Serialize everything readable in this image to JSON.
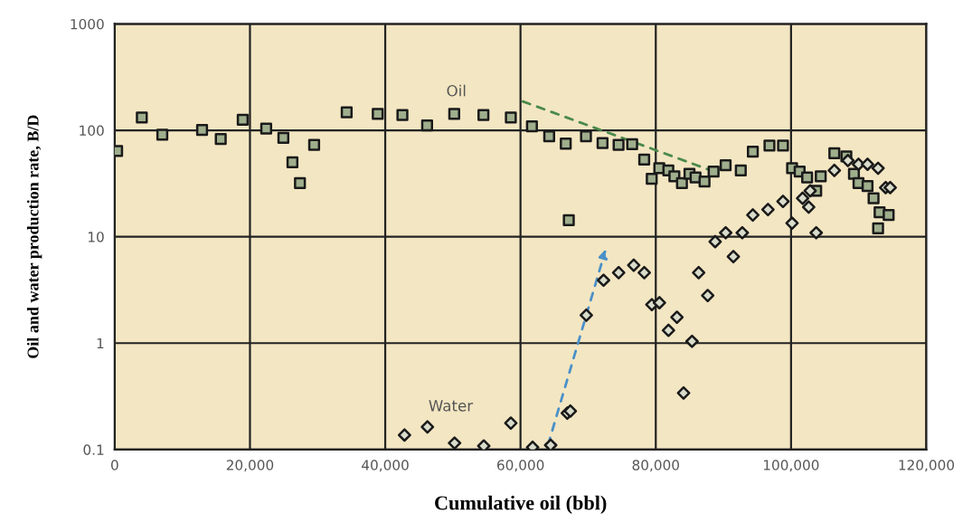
{
  "chart_data": {
    "type": "scatter",
    "xlabel": "Cumulative oil (bbl)",
    "ylabel": "Oil and water production rate, B/D",
    "log": "y",
    "grid": true,
    "xlim": [
      0,
      120000
    ],
    "ylim": [
      0.1,
      1000
    ],
    "xticks": [
      0,
      {
        "value": 20000,
        "label": "20,000"
      },
      {
        "value": 40000,
        "label": "40,000"
      },
      {
        "value": 60000,
        "label": "60,000"
      },
      {
        "value": 80000,
        "label": "80,000"
      },
      {
        "value": 100000,
        "label": "100,000"
      },
      {
        "value": 120000,
        "label": "120,000"
      }
    ],
    "yticks": [
      {
        "value": 0.1,
        "label": "0.1"
      },
      1,
      10,
      100,
      1000
    ],
    "series": [
      {
        "color": "#9fae8c",
        "marker": "square",
        "x": [
          360,
          4010,
          7040,
          12920,
          15680,
          18930,
          22400,
          24940,
          26280,
          27390,
          29490,
          34300,
          38890,
          42540,
          46190,
          50200,
          54520,
          58570,
          61690,
          64240,
          66690,
          67140,
          69680,
          72130,
          74500,
          76510,
          78290,
          79400,
          80520,
          81860,
          82750,
          83870,
          84980,
          85880,
          87210,
          88550,
          90330,
          92570,
          94350,
          96810,
          98810,
          100150,
          101270,
          102380,
          103720,
          104390,
          106400,
          108180,
          109300,
          109970,
          111310,
          112200,
          112870,
          113090,
          114430
        ],
        "values": [
          64,
          132,
          91,
          101,
          83,
          126,
          104,
          85,
          50,
          32,
          73,
          148,
          143,
          139,
          111,
          143,
          139,
          132,
          109,
          88,
          75,
          14.3,
          88,
          76,
          73,
          74,
          53,
          35,
          44,
          42,
          37,
          32,
          39,
          36,
          33,
          41,
          47,
          42,
          63,
          72,
          72,
          44,
          41,
          36,
          27,
          37,
          61,
          57,
          39,
          32,
          30,
          23,
          12,
          17,
          16
        ]
      },
      {
        "color": "#d9dccb",
        "marker": "diamond",
        "x": [
          42850,
          46240,
          50250,
          54570,
          58570,
          61790,
          64460,
          66920,
          67370,
          69730,
          72280,
          74510,
          76740,
          78300,
          79420,
          80540,
          81880,
          83130,
          84110,
          85360,
          86340,
          87680,
          88780,
          90340,
          91470,
          92790,
          94350,
          96590,
          98810,
          100150,
          101710,
          102610,
          102830,
          103720,
          106400,
          108410,
          109970,
          111310,
          112870,
          113990,
          114660
        ],
        "values": [
          0.137,
          0.163,
          0.115,
          0.108,
          0.177,
          0.105,
          0.11,
          0.22,
          0.23,
          1.83,
          3.9,
          4.6,
          5.4,
          4.6,
          2.3,
          2.4,
          1.32,
          1.75,
          0.34,
          1.04,
          4.6,
          2.8,
          9,
          10.9,
          6.5,
          10.9,
          16,
          18,
          21.5,
          13.4,
          23,
          19,
          27,
          10.9,
          42,
          52,
          48,
          48,
          44,
          29,
          29
        ]
      }
    ],
    "annotations": [
      "Oil",
      "Water"
    ]
  }
}
